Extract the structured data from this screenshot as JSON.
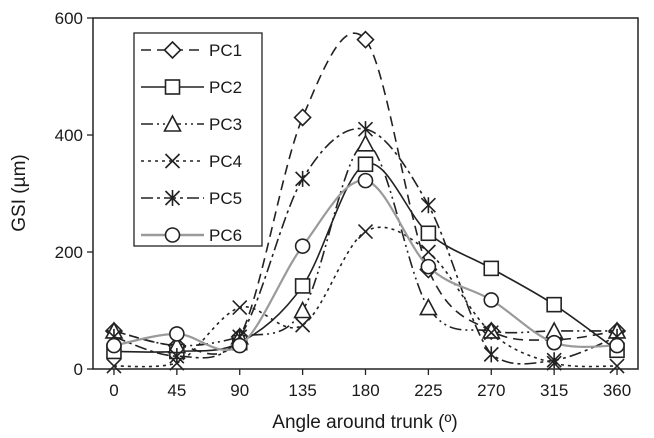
{
  "chart_data": {
    "type": "line",
    "title": "",
    "xlabel": "Angle around trunk (º)",
    "ylabel": "GSI (µm)",
    "x": [
      0,
      45,
      90,
      135,
      180,
      225,
      270,
      315,
      360
    ],
    "x_tick_labels": [
      "0",
      "45",
      "90",
      "135",
      "180",
      "225",
      "270",
      "315",
      "360"
    ],
    "xlim": [
      -15,
      375
    ],
    "ylim": [
      0,
      600
    ],
    "y_ticks": [
      0,
      200,
      400,
      600
    ],
    "y_tick_labels": [
      "0",
      "200",
      "400",
      "600"
    ],
    "grid": false,
    "legend_position": "top-left",
    "series": [
      {
        "name": "PC1",
        "marker": "diamond",
        "dash": "10,6",
        "color": "#222222",
        "values": [
          65,
          40,
          55,
          430,
          563,
          170,
          65,
          50,
          65
        ]
      },
      {
        "name": "PC2",
        "marker": "square",
        "dash": "",
        "color": "#222222",
        "values": [
          30,
          30,
          45,
          142,
          350,
          232,
          172,
          110,
          32
        ]
      },
      {
        "name": "PC3",
        "marker": "triangle",
        "dash": "12,4,2,4,2,4",
        "color": "#222222",
        "values": [
          65,
          40,
          55,
          100,
          385,
          105,
          65,
          65,
          65
        ]
      },
      {
        "name": "PC4",
        "marker": "x",
        "dash": "3,4",
        "color": "#222222",
        "values": [
          5,
          10,
          105,
          75,
          235,
          200,
          62,
          10,
          5
        ]
      },
      {
        "name": "PC5",
        "marker": "asterisk",
        "dash": "12,4,3,4",
        "color": "#222222",
        "values": [
          55,
          22,
          55,
          325,
          410,
          280,
          25,
          15,
          55
        ]
      },
      {
        "name": "PC6",
        "marker": "circle",
        "dash": "",
        "color": "#9a9a9a",
        "values": [
          40,
          60,
          40,
          210,
          322,
          175,
          118,
          45,
          40
        ]
      }
    ]
  }
}
